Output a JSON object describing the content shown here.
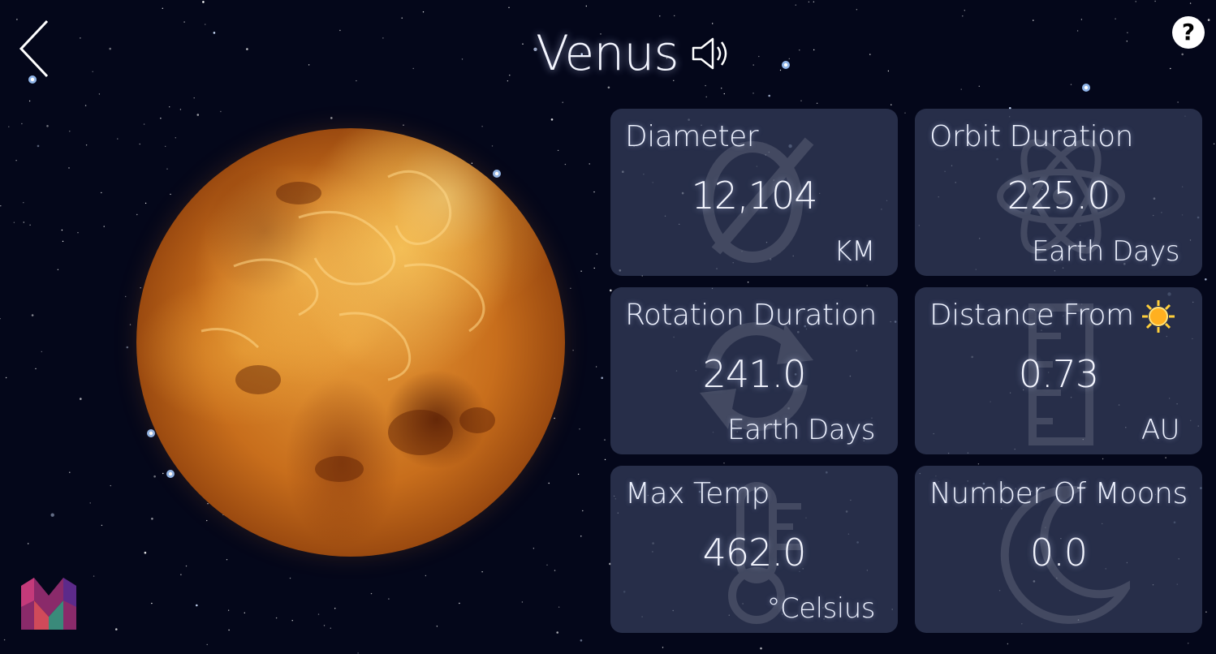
{
  "header": {
    "title": "Venus",
    "back_icon": "chevron-left-icon",
    "sound_icon": "speaker-icon",
    "help_label": "?"
  },
  "colors": {
    "background": "#05081c",
    "card": "#343e5c",
    "planet": "#d4842a"
  },
  "stats": [
    {
      "label": "Diameter",
      "value": "12,104",
      "unit": "KM",
      "icon": "diameter-icon"
    },
    {
      "label": "Orbit Duration",
      "value": "225.0",
      "unit": "Earth Days",
      "icon": "atom-icon"
    },
    {
      "label": "Rotation Duration",
      "value": "241.0",
      "unit": "Earth Days",
      "icon": "rotate-icon"
    },
    {
      "label": "Distance From",
      "value": "0.73",
      "unit": "AU",
      "icon": "ruler-icon"
    },
    {
      "label": "Max Temp",
      "value": "462.0",
      "unit": "°Celsius",
      "icon": "thermometer-icon"
    },
    {
      "label": "Number Of Moons",
      "value": "0.0",
      "unit": "",
      "icon": "moon-icon"
    }
  ]
}
